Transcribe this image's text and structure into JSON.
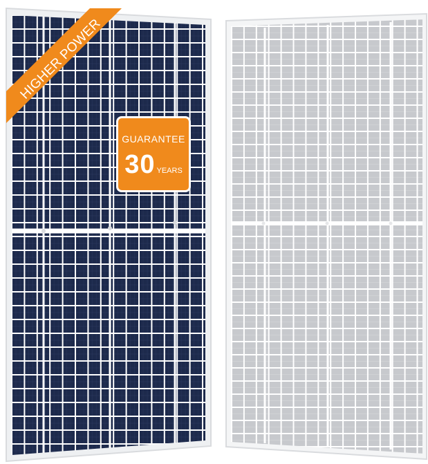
{
  "ribbon": {
    "label": "HIGHER POWER"
  },
  "badge": {
    "top": "GUARANTEE",
    "number": "30",
    "unit": "YEARS"
  },
  "colors": {
    "front_cells": "#1d2a4c",
    "rear_cells": "#c7c9cd",
    "accent": "#f08a1c",
    "frame": "#d9dbde"
  },
  "icons": [
    "solar-panel-front",
    "solar-panel-rear"
  ]
}
